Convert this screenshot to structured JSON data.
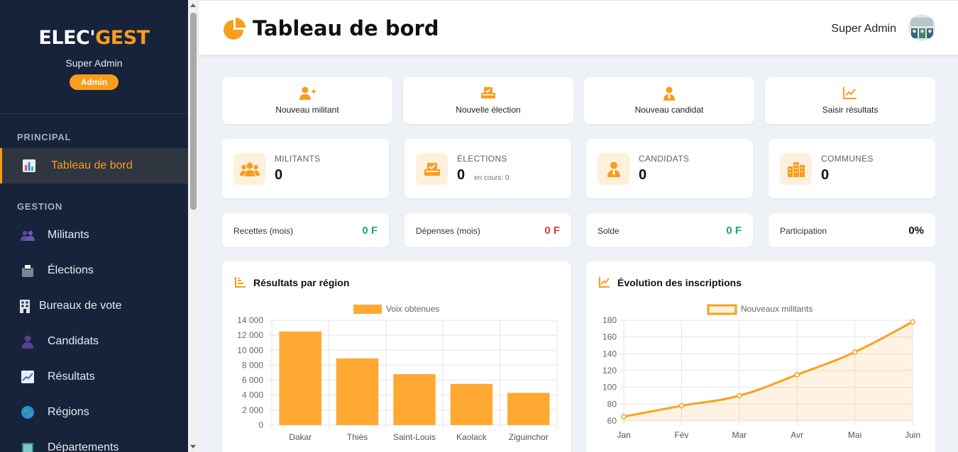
{
  "sidebar": {
    "logo_part1": "ELEC'",
    "logo_part2": "GEST",
    "user_name": "Super Admin",
    "role": "Admin",
    "sections": [
      {
        "title": "PRINCIPAL"
      },
      {
        "title": "GESTION"
      }
    ],
    "items": [
      {
        "label": "Tableau de bord",
        "icon": "bar-chart-icon",
        "active": true
      },
      {
        "label": "Militants",
        "icon": "people-icon"
      },
      {
        "label": "Élections",
        "icon": "ballot-box-icon"
      },
      {
        "label": "Bureaux de vote",
        "icon": "building-icon"
      },
      {
        "label": "Candidats",
        "icon": "person-icon"
      },
      {
        "label": "Résultats",
        "icon": "trend-chart-icon"
      },
      {
        "label": "Régions",
        "icon": "globe-icon"
      },
      {
        "label": "Départements",
        "icon": "map-book-icon"
      }
    ]
  },
  "header": {
    "title": "Tableau de bord",
    "user_name": "Super Admin"
  },
  "quick_actions": [
    {
      "label": "Nouveau militant",
      "icon": "user-plus-icon"
    },
    {
      "label": "Nouvelle élection",
      "icon": "vote-icon"
    },
    {
      "label": "Nouveau candidat",
      "icon": "user-tie-icon"
    },
    {
      "label": "Saisir résultats",
      "icon": "chart-line-icon"
    }
  ],
  "stats": [
    {
      "label": "MILITANTS",
      "value": "0",
      "icon": "users-icon"
    },
    {
      "label": "ÉLECTIONS",
      "value": "0",
      "sub": "en cours: 0",
      "icon": "vote-icon"
    },
    {
      "label": "CANDIDATS",
      "value": "0",
      "icon": "user-tie-icon"
    },
    {
      "label": "COMMUNES",
      "value": "0",
      "icon": "city-icon"
    }
  ],
  "finance": [
    {
      "label": "Recettes (mois)",
      "value": "0 F",
      "color": "#22a861"
    },
    {
      "label": "Dépenses (mois)",
      "value": "0 F",
      "color": "#e53935"
    },
    {
      "label": "Solde",
      "value": "0 F",
      "color": "#22a861"
    },
    {
      "label": "Participation",
      "value": "0%",
      "color": "#111111"
    }
  ],
  "colors": {
    "accent": "#f99d1c",
    "sidebar_bg": "#17233a",
    "bar": "#ffa933",
    "line": "#f7a21d"
  },
  "chart_data": [
    {
      "type": "bar",
      "title": "Résultats par région",
      "categories": [
        "Dakar",
        "Thiès",
        "Saint-Louis",
        "Kaolack",
        "Ziguinchor"
      ],
      "series": [
        {
          "name": "Voix obtenues",
          "values": [
            12500,
            8900,
            6800,
            5500,
            4300
          ]
        }
      ],
      "ylim": [
        0,
        14000
      ],
      "yticks": [
        "0",
        "2 000",
        "4 000",
        "6 000",
        "8 000",
        "10 000",
        "12 000",
        "14 000"
      ],
      "legend": "top",
      "grid": true
    },
    {
      "type": "area",
      "title": "Évolution des inscriptions",
      "categories": [
        "Jan",
        "Fév",
        "Mar",
        "Avr",
        "Mai",
        "Juin"
      ],
      "series": [
        {
          "name": "Nouveaux militants",
          "values": [
            65,
            78,
            90,
            115,
            142,
            178
          ]
        }
      ],
      "ylim": [
        60,
        180
      ],
      "yticks": [
        "60",
        "80",
        "100",
        "120",
        "140",
        "160",
        "180"
      ],
      "legend": "top",
      "grid": true
    }
  ]
}
